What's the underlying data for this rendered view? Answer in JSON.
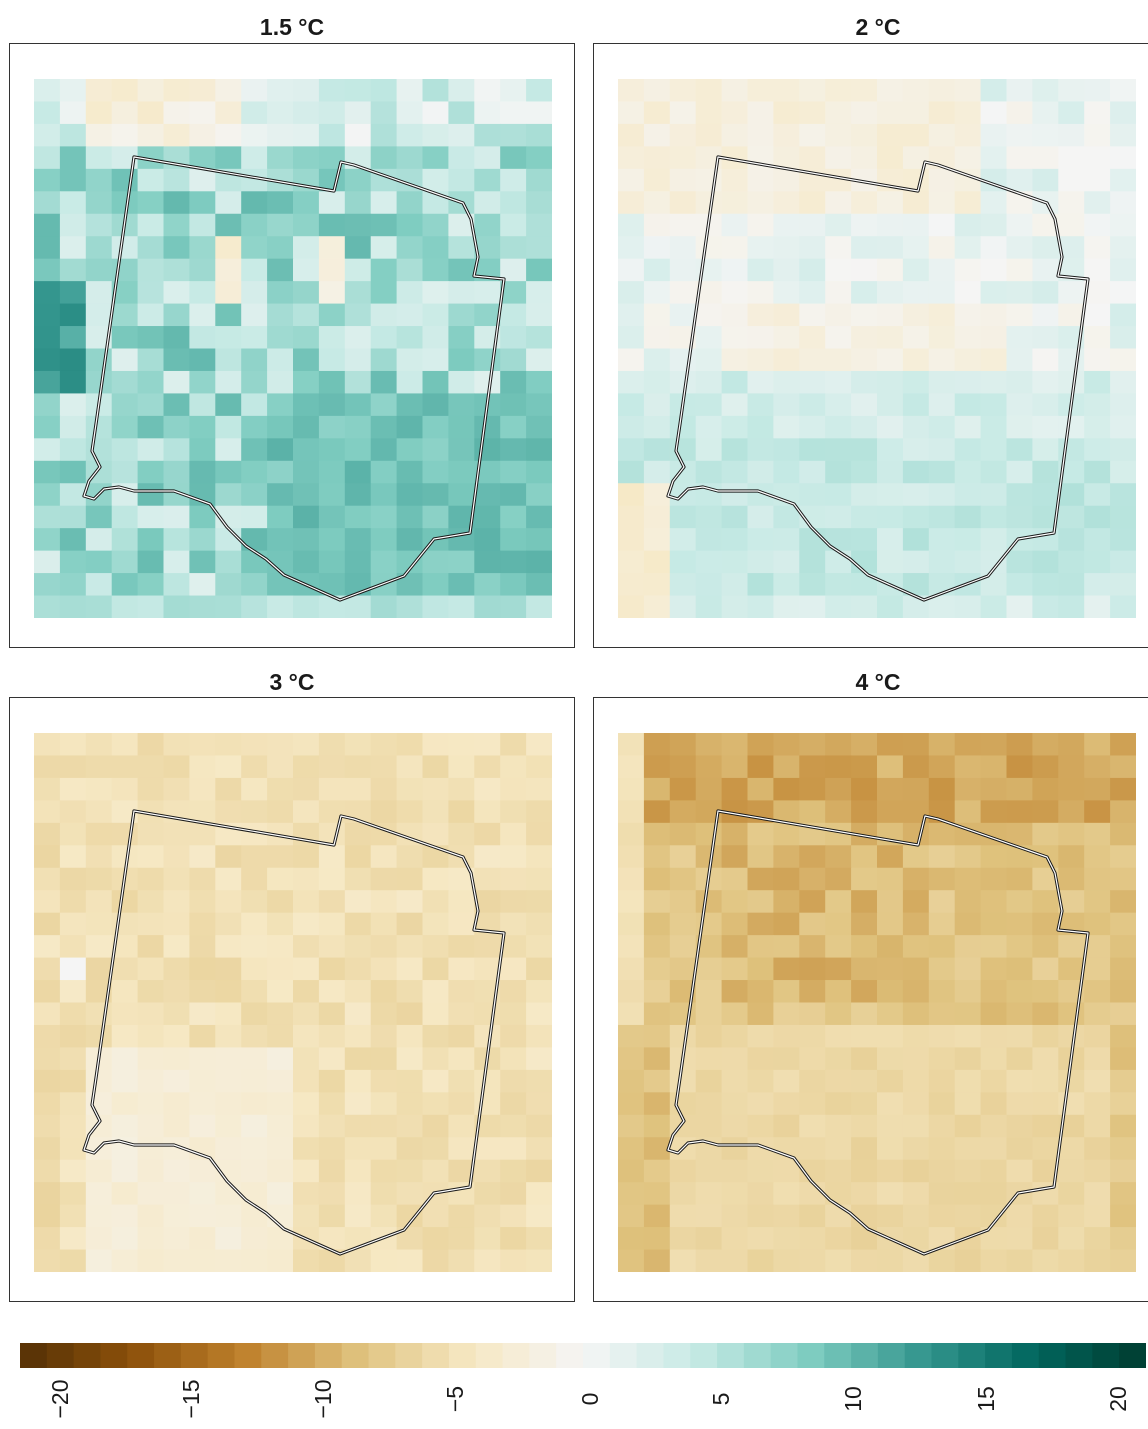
{
  "panels": [
    {
      "title": "1.5 °C",
      "mode": "wet1"
    },
    {
      "title": "2 °C",
      "mode": "wet2"
    },
    {
      "title": "3 °C",
      "mode": "dry3"
    },
    {
      "title": "4 °C",
      "mode": "dry4"
    }
  ],
  "colorbar": {
    "min": -21,
    "max": 21,
    "ticks": [
      "−20",
      "−15",
      "−10",
      "−5",
      "0",
      "5",
      "10",
      "15",
      "20"
    ],
    "dry_color": "#543005",
    "wet_color": "#003c30",
    "neutral_color": "#f5f5f5"
  }
}
